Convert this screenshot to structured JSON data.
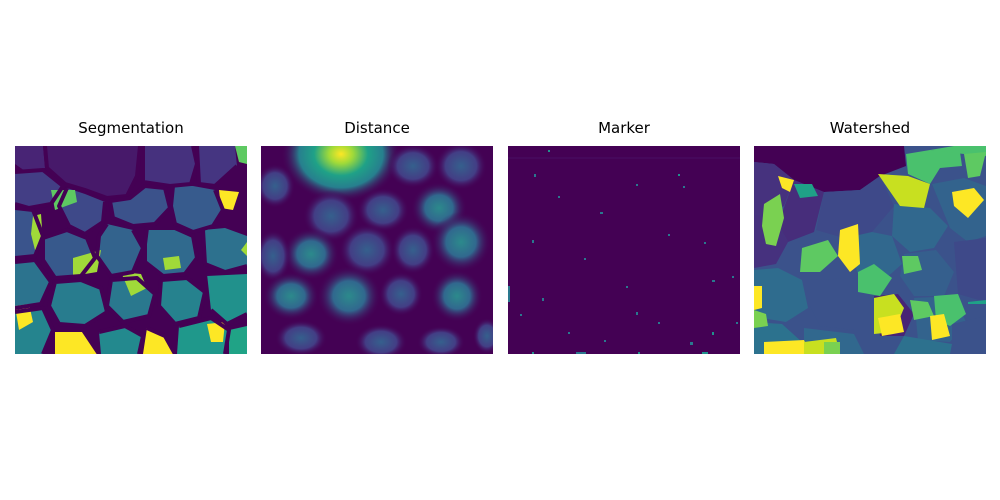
{
  "panels": [
    {
      "title": "Segmentation",
      "kind": "segmentation"
    },
    {
      "title": "Distance",
      "kind": "distance"
    },
    {
      "title": "Marker",
      "kind": "marker"
    },
    {
      "title": "Watershed",
      "kind": "watershed"
    }
  ],
  "colormap": "viridis",
  "palette": [
    "#440154",
    "#46337e",
    "#365c8d",
    "#277f8e",
    "#1fa187",
    "#4ac16d",
    "#a0da39",
    "#fde725"
  ]
}
